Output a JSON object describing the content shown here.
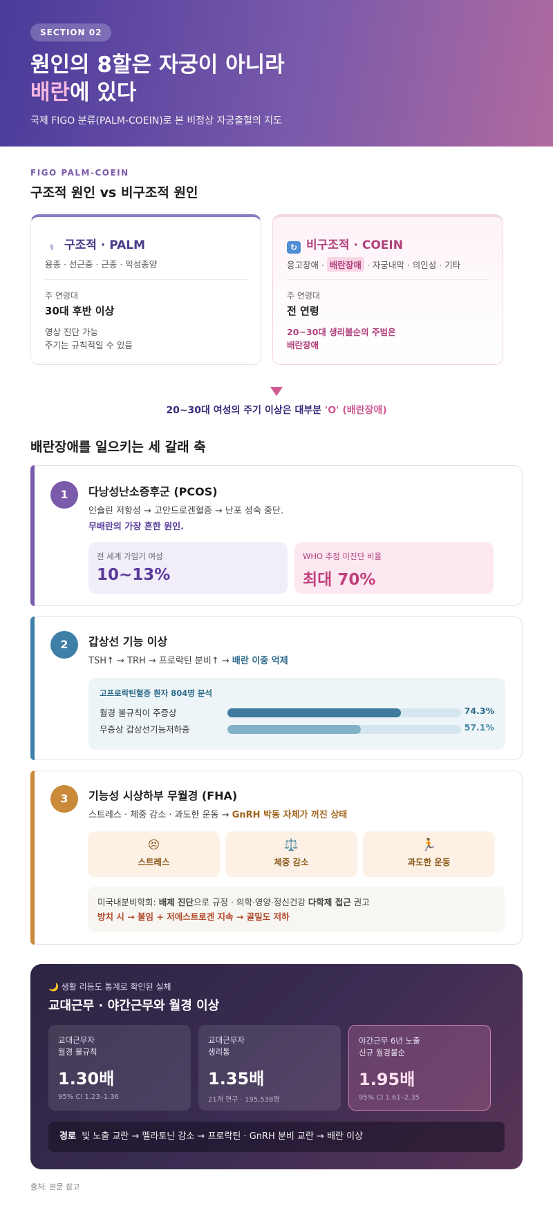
{
  "hero": {
    "section": "SECTION 02",
    "title_line1": "원인의 8할은 자궁이 아니라",
    "title_line2_pink": "배란",
    "title_line2_rest": "에 있다",
    "subtitle": "국제 FIGO 분류(PALM-COEIN)로 본 비정상 자궁출혈의 지도"
  },
  "figo": {
    "label": "FIGO PALM-COEIN",
    "heading": "구조적 원인 vs 비구조적 원인",
    "palm": {
      "icon": "stethoscope-icon",
      "title": "구조적 · PALM",
      "list": "용종 · 선근증 · 근종 · 악성종양",
      "age_label": "주 연령대",
      "age_value": "30대 후반 이상",
      "note_line1": "영상 진단 가능",
      "note_line2": "주기는 규칙적일 수 있음"
    },
    "coein": {
      "icon": "cycle-icon",
      "title": "비구조적 · COEIN",
      "list_pre": "응고장애 · ",
      "list_tag": "배란장애",
      "list_post": " · 자궁내막 · 의인성 · 기타",
      "age_label": "주 연령대",
      "age_value": "전 연령",
      "note_line1": "20~30대 생리불순의 주범은",
      "note_line2": "배란장애"
    },
    "conclusion_pre": "20~30대 여성의 주기 이상은 대부분 ",
    "conclusion_pink": "'O' (배란장애)"
  },
  "axes": {
    "heading": "배란장애를 일으키는 세 갈래 축",
    "pcos": {
      "num": "1",
      "title": "다낭성난소증후군 (PCOS)",
      "desc": "인슐린 저항성 → 고안드로겐혈증 → 난포 성숙 중단.",
      "desc_bold": "무배란의 가장 흔한 원인.",
      "stat1_label": "전 세계 가임기 여성",
      "stat1_value": "10~13%",
      "stat2_label": "WHO 추정 미진단 비율",
      "stat2_value": "최대 70%"
    },
    "thyroid": {
      "num": "2",
      "title": "갑상선 기능 이상",
      "desc": "TSH↑ → TRH → 프로락틴 분비↑ → ",
      "desc_bold": "배란 이중 억제",
      "panel_title": "고프로락틴혈증 환자 804명 분석",
      "rows": [
        {
          "label": "월경 불규칙이 주증상",
          "value": "74.3%",
          "pct": 74.3
        },
        {
          "label": "무증상 갑상선기능저하증",
          "value": "57.1%",
          "pct": 57.1
        }
      ]
    },
    "fha": {
      "num": "3",
      "title": "기능성 시상하부 무월경 (FHA)",
      "desc": "스트레스 · 체중 감소 · 과도한 운동 → ",
      "desc_bold": "GnRH 박동 자체가 꺼진 상태",
      "factors": [
        {
          "icon": "😣",
          "label": "스트레스"
        },
        {
          "icon": "⚖️",
          "label": "체중 감소"
        },
        {
          "icon": "🏃",
          "label": "과도한 운동"
        }
      ],
      "note_pre": "미국내분비학회: ",
      "note_b1": "배제 진단",
      "note_mid": "으로 규정 · 의학·영양·정신건강 ",
      "note_b2": "다학제 접근",
      "note_post": " 권고",
      "note_red": "방치 시 → 불임 + 저에스트로겐 지속 → 골밀도 저하"
    }
  },
  "shift": {
    "kicker": "🌙 생활 리듬도 통계로 확인된 실체",
    "title": "교대근무 · 야간근무와 월경 이상",
    "stats": [
      {
        "l1": "교대근무자",
        "l2": "월경 불규칙",
        "value": "1.30배",
        "sub": "95% CI 1.23–1.36"
      },
      {
        "l1": "교대근무자",
        "l2": "생리통",
        "value": "1.35배",
        "sub": "21개 연구 · 195,538명"
      },
      {
        "l1": "야간근무 6년 노출",
        "l2": "신규 월경불순",
        "value": "1.95배",
        "sub": "95% CI 1.61–2.35"
      }
    ],
    "path_label": "경로",
    "path_text": "빛 노출 교란 → 멜라토닌 감소 → 프로락틴 · GnRH 분비 교란 → 배란 이상"
  },
  "source": "출처: 본문 참고"
}
